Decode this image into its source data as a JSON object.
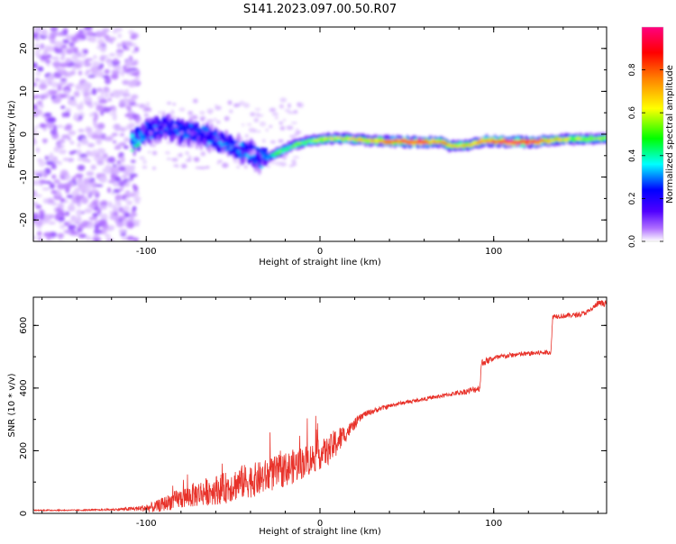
{
  "title": "S141.2023.097.00.50.R07",
  "chart_data": [
    {
      "type": "heatmap",
      "name": "spectrogram",
      "xlabel": "Height of straight line (km)",
      "ylabel": "Frequency (Hz)",
      "xlim": [
        -165,
        165
      ],
      "ylim": [
        -25,
        25
      ],
      "xticks": [
        -100,
        0,
        100
      ],
      "yticks": [
        20,
        10,
        0,
        -10,
        -20
      ],
      "xtick_labels": [
        "-100",
        "0",
        "100"
      ],
      "ytick_labels": [
        "20",
        "10",
        "0",
        "-10",
        "-20"
      ],
      "colorbar": {
        "label": "Normalized spectral amplitude",
        "range": [
          0,
          1
        ],
        "ticks": [
          0.0,
          0.2,
          0.4,
          0.6,
          0.8
        ],
        "tick_labels": [
          "0.0",
          "0.2",
          "0.4",
          "0.6",
          "0.8"
        ],
        "colors": [
          "#ffffff",
          "#b070ff",
          "#5000ff",
          "#0000ff",
          "#00ffff",
          "#00ff00",
          "#ffff00",
          "#ff8000",
          "#ff0000",
          "#ff0080"
        ]
      },
      "trace": [
        {
          "x": -108,
          "f": -2.0,
          "a": 0.45
        },
        {
          "x": -100,
          "f": 0.5,
          "a": 0.35
        },
        {
          "x": -90,
          "f": 2.0,
          "a": 0.3
        },
        {
          "x": -80,
          "f": 0.5,
          "a": 0.35
        },
        {
          "x": -70,
          "f": 0.0,
          "a": 0.35
        },
        {
          "x": -60,
          "f": -1.5,
          "a": 0.35
        },
        {
          "x": -50,
          "f": -3.0,
          "a": 0.35
        },
        {
          "x": -40,
          "f": -4.5,
          "a": 0.35
        },
        {
          "x": -33,
          "f": -6.0,
          "a": 0.35
        },
        {
          "x": -25,
          "f": -4.5,
          "a": 0.5
        },
        {
          "x": -15,
          "f": -2.5,
          "a": 0.5
        },
        {
          "x": -5,
          "f": -1.5,
          "a": 0.55
        },
        {
          "x": 5,
          "f": -1.0,
          "a": 0.6
        },
        {
          "x": 15,
          "f": -1.0,
          "a": 0.6
        },
        {
          "x": 30,
          "f": -1.5,
          "a": 0.65
        },
        {
          "x": 50,
          "f": -1.8,
          "a": 0.85
        },
        {
          "x": 70,
          "f": -1.8,
          "a": 0.7
        },
        {
          "x": 75,
          "f": -2.8,
          "a": 0.65
        },
        {
          "x": 85,
          "f": -2.5,
          "a": 0.65
        },
        {
          "x": 95,
          "f": -1.5,
          "a": 0.75
        },
        {
          "x": 110,
          "f": -1.8,
          "a": 0.9
        },
        {
          "x": 125,
          "f": -1.8,
          "a": 0.8
        },
        {
          "x": 140,
          "f": -1.2,
          "a": 0.6
        },
        {
          "x": 165,
          "f": -1.0,
          "a": 0.55
        }
      ]
    },
    {
      "type": "line",
      "name": "snr",
      "xlabel": "Height of straight line (km)",
      "ylabel": "SNR (10 * v/v)",
      "xlim": [
        -165,
        165
      ],
      "ylim": [
        0,
        690
      ],
      "xticks": [
        -100,
        0,
        100
      ],
      "yticks": [
        0,
        200,
        400,
        600
      ],
      "xtick_labels": [
        "-100",
        "0",
        "100"
      ],
      "ytick_labels": [
        "0",
        "200",
        "400",
        "600"
      ],
      "series": [
        {
          "name": "SNR",
          "color": "#e8322a",
          "x": [
            -165,
            -140,
            -120,
            -105,
            -95,
            -85,
            -75,
            -65,
            -55,
            -45,
            -35,
            -25,
            -15,
            -5,
            5,
            10,
            15,
            25,
            35,
            45,
            55,
            65,
            75,
            85,
            92,
            93,
            100,
            110,
            120,
            133,
            134,
            140,
            150,
            155,
            160,
            165
          ],
          "y": [
            10,
            10,
            12,
            15,
            20,
            40,
            55,
            70,
            80,
            100,
            110,
            130,
            150,
            175,
            200,
            230,
            255,
            315,
            335,
            350,
            360,
            370,
            380,
            390,
            400,
            480,
            495,
            505,
            510,
            515,
            630,
            630,
            635,
            645,
            670,
            670
          ],
          "noise": [
            2,
            2,
            3,
            8,
            18,
            28,
            38,
            45,
            50,
            55,
            55,
            55,
            55,
            50,
            45,
            50,
            25,
            10,
            8,
            6,
            6,
            6,
            7,
            10,
            12,
            12,
            10,
            8,
            8,
            8,
            8,
            8,
            8,
            8,
            10,
            10
          ]
        }
      ]
    }
  ]
}
